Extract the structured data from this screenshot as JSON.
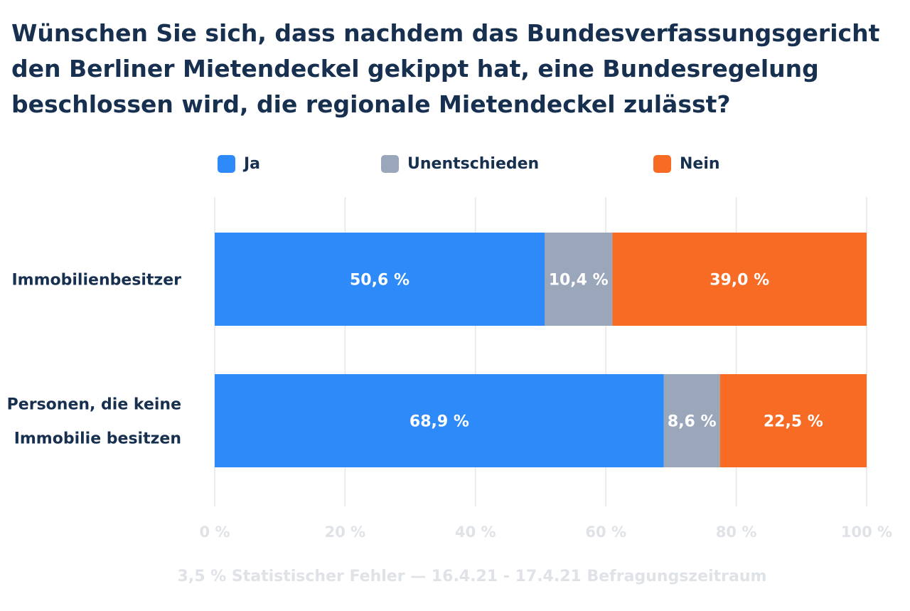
{
  "title_lines": [
    "Wünschen Sie sich, dass nachdem das Bundesverfassungsgericht",
    "den Berliner Mietendeckel gekippt hat, eine Bundesregelung",
    "beschlossen wird, die regionale Mietendeckel zulässt?"
  ],
  "footnote": "3,5 % Statistischer Fehler — 16.4.21 - 17.4.21 Befragungszeitraum",
  "colors": {
    "ja": "#2f8af9",
    "unentschieden": "#9aa7bb",
    "nein": "#f76b24",
    "grid": "#e6e6e6",
    "axis_text": "#dfe3e8",
    "text": "#17304f"
  },
  "chart_data": {
    "type": "bar",
    "orientation": "horizontal",
    "stacked": true,
    "title": "Wünschen Sie sich, dass nachdem das Bundesverfassungsgericht den Berliner Mietendeckel gekippt hat, eine Bundesregelung beschlossen wird, die regionale Mietendeckel zulässt?",
    "categories": [
      [
        "Immobilienbesitzer"
      ],
      [
        "Personen, die keine",
        "Immobilie besitzen"
      ]
    ],
    "series": [
      {
        "name": "Ja",
        "color": "#2f8af9",
        "values": [
          50.6,
          68.9
        ],
        "labels": [
          "50,6 %",
          "68,9 %"
        ]
      },
      {
        "name": "Unentschieden",
        "color": "#9aa7bb",
        "values": [
          10.4,
          8.6
        ],
        "labels": [
          "10,4 %",
          "8,6 %"
        ]
      },
      {
        "name": "Nein",
        "color": "#f76b24",
        "values": [
          39.0,
          22.5
        ],
        "labels": [
          "39,0 %",
          "22,5 %"
        ]
      }
    ],
    "xlim": [
      0,
      100
    ],
    "x_ticks": [
      0,
      20,
      40,
      60,
      80,
      100
    ],
    "x_tick_labels": [
      "0 %",
      "20 %",
      "40 %",
      "60 %",
      "80 %",
      "100 %"
    ],
    "grid": true,
    "legend_position": "top"
  }
}
